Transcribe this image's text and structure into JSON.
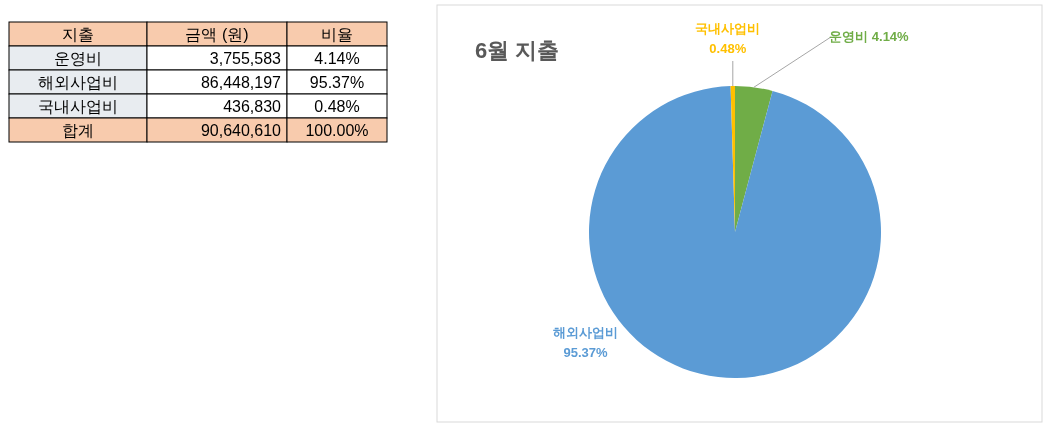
{
  "chart_data": [
    {
      "type": "other",
      "annotations": [
        "지출",
        "금액 (원)",
        "비율",
        "운영비",
        "3,755,583",
        "4.14%",
        "해외사업비",
        "86,448,197",
        "95.37%",
        "국내사업비",
        "436,830",
        "0.48%",
        "합계",
        "90,640,610",
        "100.00%"
      ]
    },
    {
      "type": "pie",
      "title": "6월 지출",
      "categories": [
        "운영비",
        "해외사업비",
        "국내사업비"
      ],
      "values": [
        4.14,
        95.37,
        0.48
      ],
      "colors": [
        "#70ad47",
        "#5b9bd5",
        "#ffc000"
      ],
      "value_labels": [
        "4.14%",
        "95.37%",
        "0.48%"
      ]
    }
  ]
}
